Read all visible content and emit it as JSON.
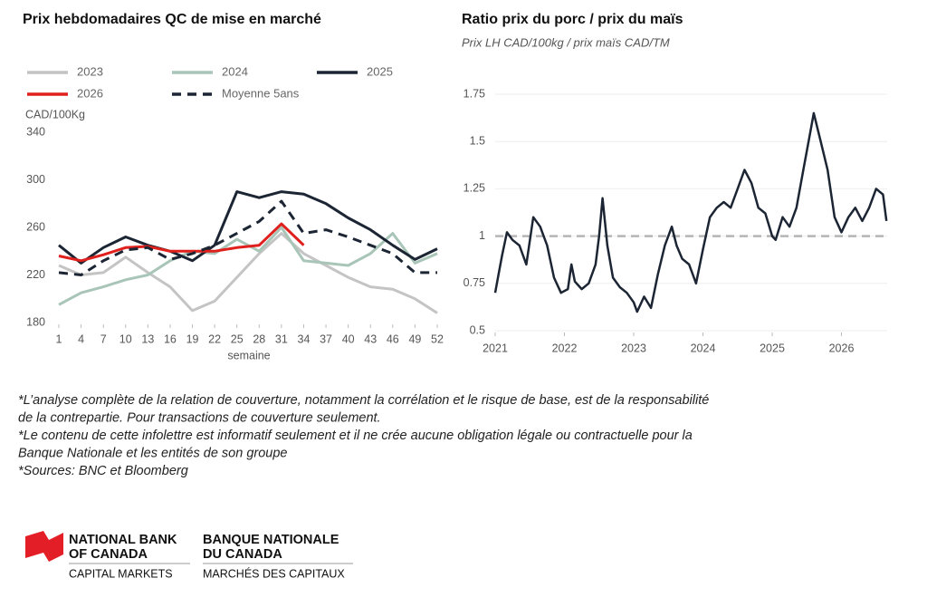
{
  "chart_data": [
    {
      "type": "line",
      "title": "Prix hebdomadaires QC de mise en marché",
      "y_label": "CAD/100Kg",
      "x_label": "semaine",
      "x": [
        1,
        4,
        7,
        10,
        13,
        16,
        19,
        22,
        25,
        28,
        31,
        34,
        37,
        40,
        43,
        46,
        49,
        52
      ],
      "xlim": [
        1,
        52
      ],
      "xticks": [
        1,
        4,
        7,
        10,
        13,
        16,
        19,
        22,
        25,
        28,
        31,
        34,
        37,
        40,
        43,
        46,
        49,
        52
      ],
      "ylim": [
        180,
        340
      ],
      "yticks": [
        180,
        220,
        260,
        300,
        340
      ],
      "grid": false,
      "legend": "top",
      "series": [
        {
          "name": "2023",
          "color": "#c4c4c4",
          "dashed": false,
          "values": [
            228,
            220,
            222,
            235,
            222,
            210,
            190,
            198,
            218,
            238,
            255,
            238,
            228,
            218,
            210,
            208,
            200,
            188
          ]
        },
        {
          "name": "2024",
          "color": "#a8c5b8",
          "dashed": false,
          "values": [
            195,
            205,
            210,
            216,
            220,
            232,
            240,
            238,
            250,
            240,
            260,
            232,
            230,
            228,
            238,
            255,
            230,
            238
          ]
        },
        {
          "name": "2025",
          "color": "#1c2533",
          "dashed": false,
          "values": [
            245,
            230,
            243,
            252,
            245,
            240,
            232,
            245,
            290,
            285,
            290,
            288,
            280,
            268,
            258,
            245,
            233,
            242
          ]
        },
        {
          "name": "2026",
          "color": "#e0201c",
          "dashed": false,
          "values": [
            236,
            232,
            237,
            243,
            244,
            240,
            240,
            240,
            243,
            245,
            263,
            245,
            null,
            null,
            null,
            null,
            null,
            null
          ]
        },
        {
          "name": "Moyenne 5ans",
          "color": "#1c2533",
          "dashed": true,
          "values": [
            222,
            220,
            232,
            241,
            243,
            233,
            238,
            245,
            255,
            265,
            282,
            255,
            258,
            252,
            245,
            238,
            222,
            222
          ]
        }
      ]
    },
    {
      "type": "line",
      "title": "Ratio prix du porc / prix du maïs",
      "subtitle": "Prix LH CAD/100kg / prix maïs CAD/TM",
      "x": [
        2021.0,
        2021.05,
        2021.1,
        2021.17,
        2021.25,
        2021.35,
        2021.45,
        2021.55,
        2021.65,
        2021.75,
        2021.85,
        2021.95,
        2022.05,
        2022.1,
        2022.15,
        2022.25,
        2022.35,
        2022.45,
        2022.5,
        2022.55,
        2022.62,
        2022.7,
        2022.8,
        2022.9,
        2023.0,
        2023.05,
        2023.15,
        2023.25,
        2023.35,
        2023.45,
        2023.55,
        2023.62,
        2023.7,
        2023.8,
        2023.9,
        2024.0,
        2024.1,
        2024.2,
        2024.3,
        2024.4,
        2024.5,
        2024.6,
        2024.7,
        2024.8,
        2024.9,
        2025.0,
        2025.05,
        2025.15,
        2025.25,
        2025.35,
        2025.45,
        2025.55,
        2025.6,
        2025.7,
        2025.8,
        2025.9,
        2026.0,
        2026.1,
        2026.2,
        2026.3,
        2026.4,
        2026.5,
        2026.6,
        2026.65
      ],
      "values": [
        0.7,
        0.8,
        0.9,
        1.02,
        0.98,
        0.95,
        0.85,
        1.1,
        1.05,
        0.95,
        0.78,
        0.7,
        0.72,
        0.85,
        0.76,
        0.72,
        0.75,
        0.85,
        1.0,
        1.2,
        0.95,
        0.78,
        0.73,
        0.7,
        0.65,
        0.6,
        0.68,
        0.62,
        0.8,
        0.95,
        1.05,
        0.95,
        0.88,
        0.85,
        0.75,
        0.93,
        1.1,
        1.15,
        1.18,
        1.15,
        1.25,
        1.35,
        1.28,
        1.15,
        1.12,
        1.0,
        0.98,
        1.1,
        1.05,
        1.15,
        1.35,
        1.55,
        1.65,
        1.5,
        1.35,
        1.1,
        1.02,
        1.1,
        1.15,
        1.08,
        1.15,
        1.25,
        1.22,
        1.08
      ],
      "color": "#1c2533",
      "xlim": [
        2021,
        2026.66
      ],
      "xticks": [
        2021,
        2022,
        2023,
        2024,
        2025,
        2026
      ],
      "ylim": [
        0.5,
        1.75
      ],
      "yticks": [
        0.5,
        0.75,
        1,
        1.25,
        1.5,
        1.75
      ],
      "grid": true,
      "reference_line": 1
    }
  ],
  "footnotes": [
    "*L’analyse complète de la relation de couverture, notamment la corrélation et le risque de base, est de la responsabilité",
    "de la contrepartie. Pour transactions de couverture seulement.",
    "*Le contenu de cette infolettre est informatif seulement et il ne crée aucune obligation légale ou contractuelle pour la",
    "Banque Nationale et les entités de son groupe",
    "*Sources: BNC et Bloomberg"
  ],
  "logo": {
    "english": [
      "NATIONAL BANK",
      "OF CANADA",
      "CAPITAL MARKETS"
    ],
    "french": [
      "BANQUE NATIONALE",
      "DU CANADA",
      "MARCHÉS DES CAPITAUX"
    ]
  }
}
